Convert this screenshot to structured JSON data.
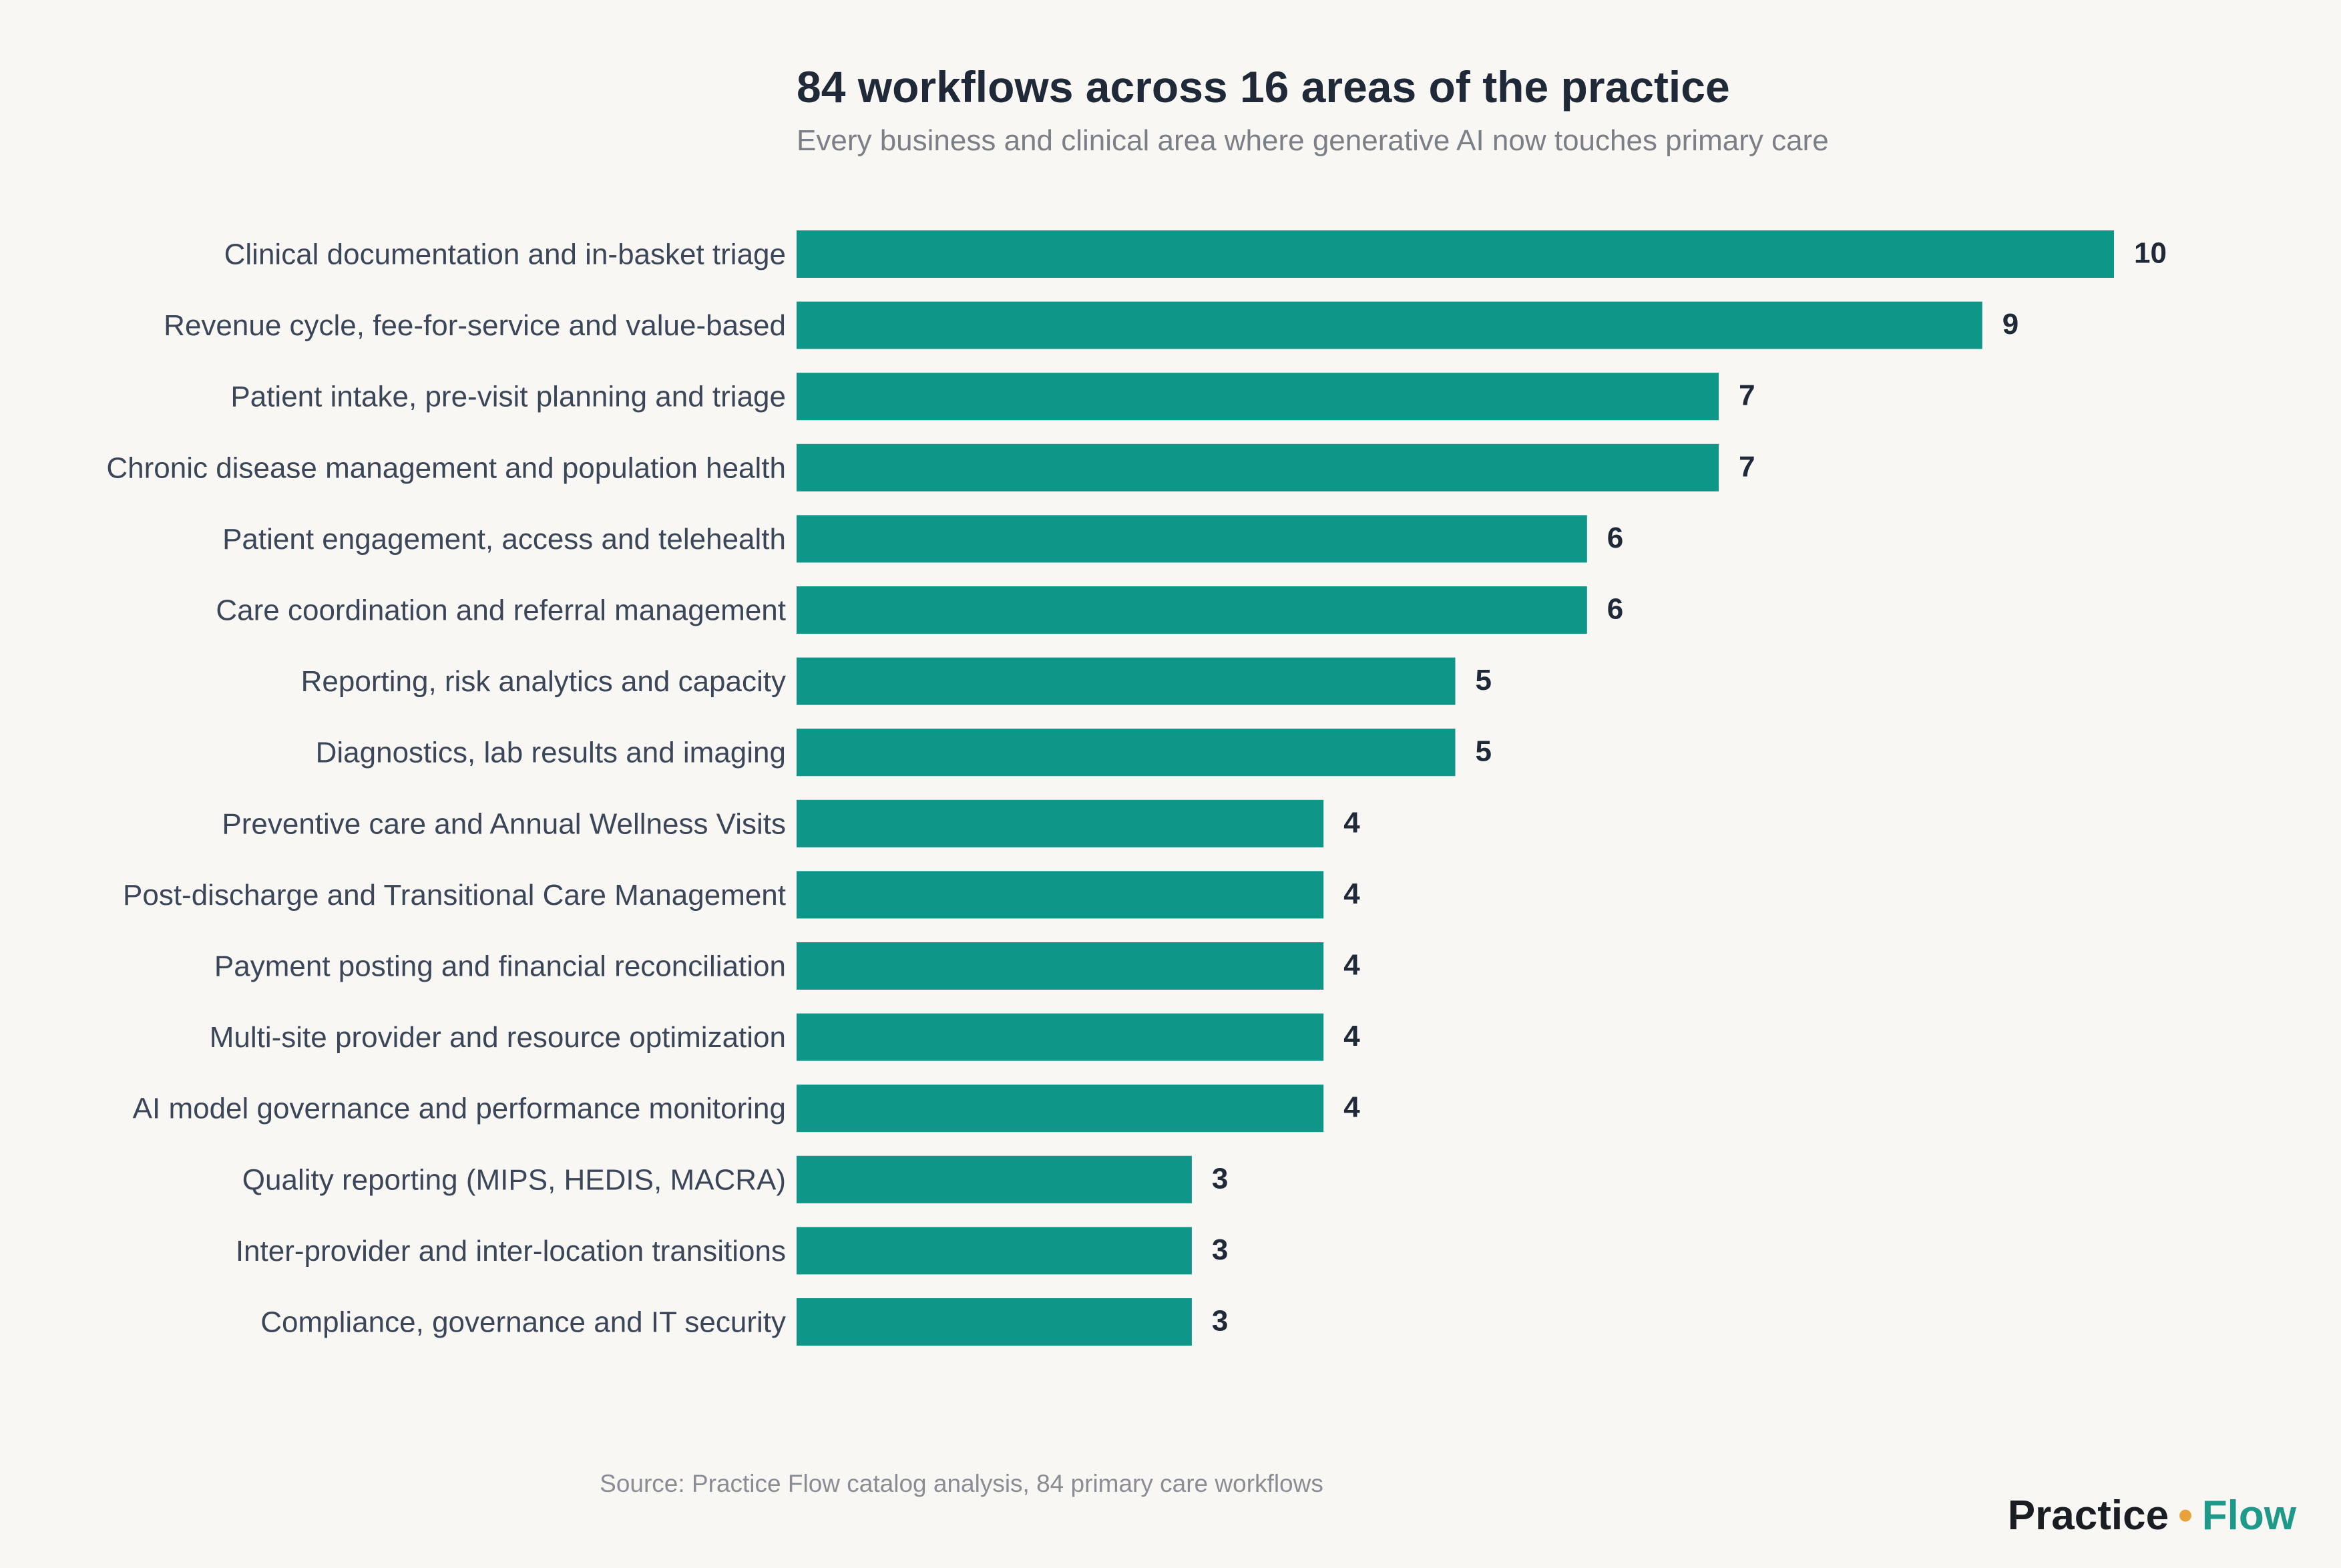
{
  "chart_data": {
    "type": "bar",
    "orientation": "horizontal",
    "title": "84 workflows across 16 areas of the practice",
    "subtitle": "Every business and clinical area where generative AI now touches primary care",
    "categories": [
      "Clinical documentation and in-basket triage",
      "Revenue cycle, fee-for-service and value-based",
      "Patient intake, pre-visit planning and triage",
      "Chronic disease management and population health",
      "Patient engagement, access and telehealth",
      "Care coordination and referral management",
      "Reporting, risk analytics and capacity",
      "Diagnostics, lab results and imaging",
      "Preventive care and Annual Wellness Visits",
      "Post-discharge and Transitional Care Management",
      "Payment posting and financial reconciliation",
      "Multi-site provider and resource optimization",
      "AI model governance and performance monitoring",
      "Quality reporting (MIPS, HEDIS, MACRA)",
      "Inter-provider and inter-location transitions",
      "Compliance, governance and IT security"
    ],
    "values": [
      10,
      9,
      7,
      7,
      6,
      6,
      5,
      5,
      4,
      4,
      4,
      4,
      4,
      3,
      3,
      3
    ],
    "xlim": [
      0,
      10
    ],
    "grid": false,
    "bar_color": "#0e9688",
    "source": "Source: Practice Flow catalog analysis, 84 primary care workflows"
  },
  "brand": {
    "word1": "Practice",
    "dot": "•",
    "word2": "Flow",
    "dot_color": "#e9a23b",
    "accent_color": "#1f9a8a"
  }
}
